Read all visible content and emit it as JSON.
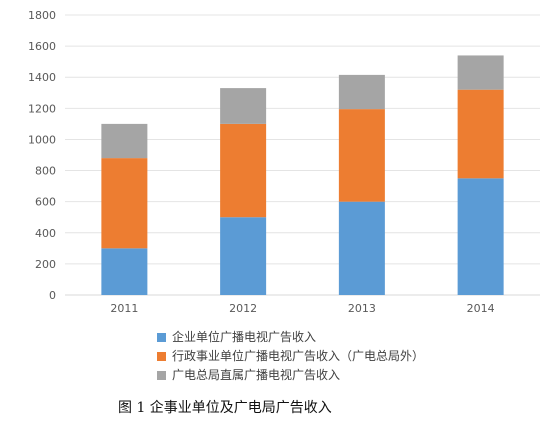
{
  "chart_data": {
    "type": "bar",
    "stacked": true,
    "categories": [
      "2011",
      "2012",
      "2013",
      "2014"
    ],
    "series": [
      {
        "name": "企业单位广播电视广告收入",
        "values": [
          300,
          500,
          600,
          750
        ],
        "color": "#5B9BD5"
      },
      {
        "name": "行政事业单位广播电视广告收入（广电总局外）",
        "values": [
          580,
          600,
          595,
          570
        ],
        "color": "#ED7D31"
      },
      {
        "name": "广电总局直属广播电视广告收入",
        "values": [
          220,
          230,
          220,
          220
        ],
        "color": "#A5A5A5"
      }
    ],
    "ylim": [
      0,
      1800
    ],
    "yticks": [
      0,
      200,
      400,
      600,
      800,
      1000,
      1200,
      1400,
      1600,
      1800
    ],
    "grid": true,
    "legend_position": "bottom"
  },
  "caption": "图 1 企事业单位及广电局广告收入"
}
